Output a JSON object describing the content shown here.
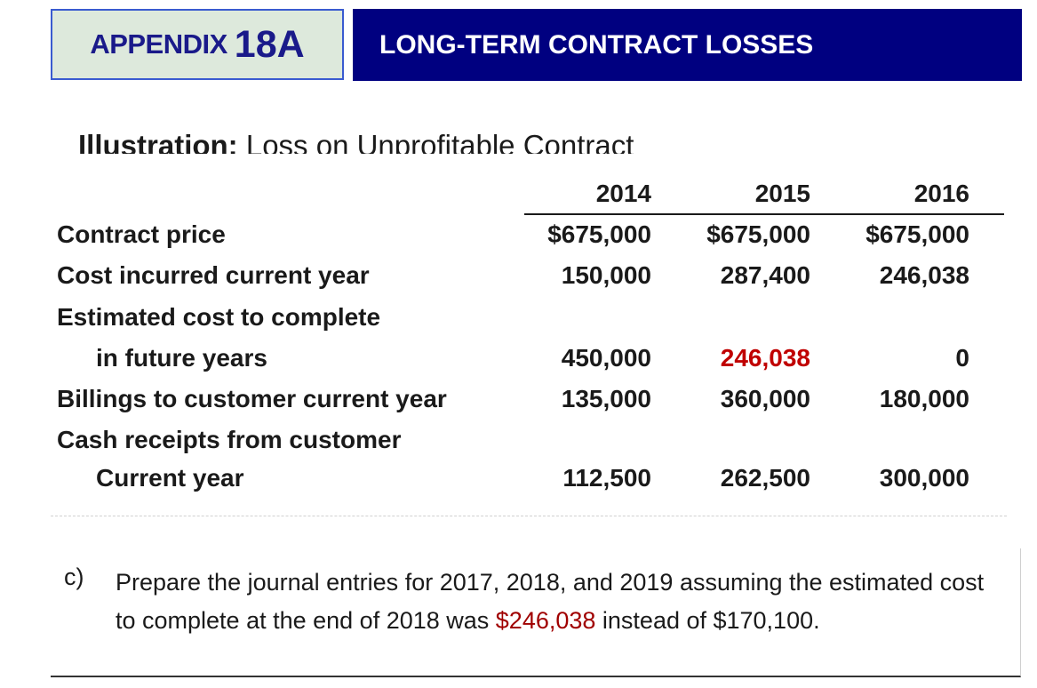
{
  "header": {
    "appendix_label": "APPENDIX",
    "appendix_number": "18A",
    "title": "LONG-TERM CONTRACT LOSSES"
  },
  "illustration": {
    "bold_part": "Illustration:",
    "rest": "Loss on Unprofitable Contract"
  },
  "table": {
    "years": [
      "2014",
      "2015",
      "2016"
    ],
    "rows": [
      {
        "label": "Contract price",
        "values": [
          "$675,000",
          "$675,000",
          "$675,000"
        ]
      },
      {
        "label": "Cost incurred current year",
        "values": [
          "150,000",
          "287,400",
          "246,038"
        ]
      },
      {
        "label": "Estimated cost to complete",
        "values": [
          "",
          "",
          ""
        ]
      },
      {
        "label": "in future years",
        "values": [
          "450,000",
          "246,038",
          "0"
        ]
      },
      {
        "label": "Billings to customer current year",
        "values": [
          "135,000",
          "360,000",
          "180,000"
        ]
      },
      {
        "label": "Cash receipts from customer",
        "values": [
          "",
          "",
          ""
        ]
      },
      {
        "label": "Current year",
        "values": [
          "112,500",
          "262,500",
          "300,000"
        ]
      }
    ],
    "highlight_color": "#c00000"
  },
  "question": {
    "letter": "c)",
    "text_before": "Prepare the journal entries for 2017, 2018, and 2019 assuming the estimated cost to complete at the end of 2018 was ",
    "highlight": "$246,038",
    "text_after": " instead of $170,100."
  }
}
